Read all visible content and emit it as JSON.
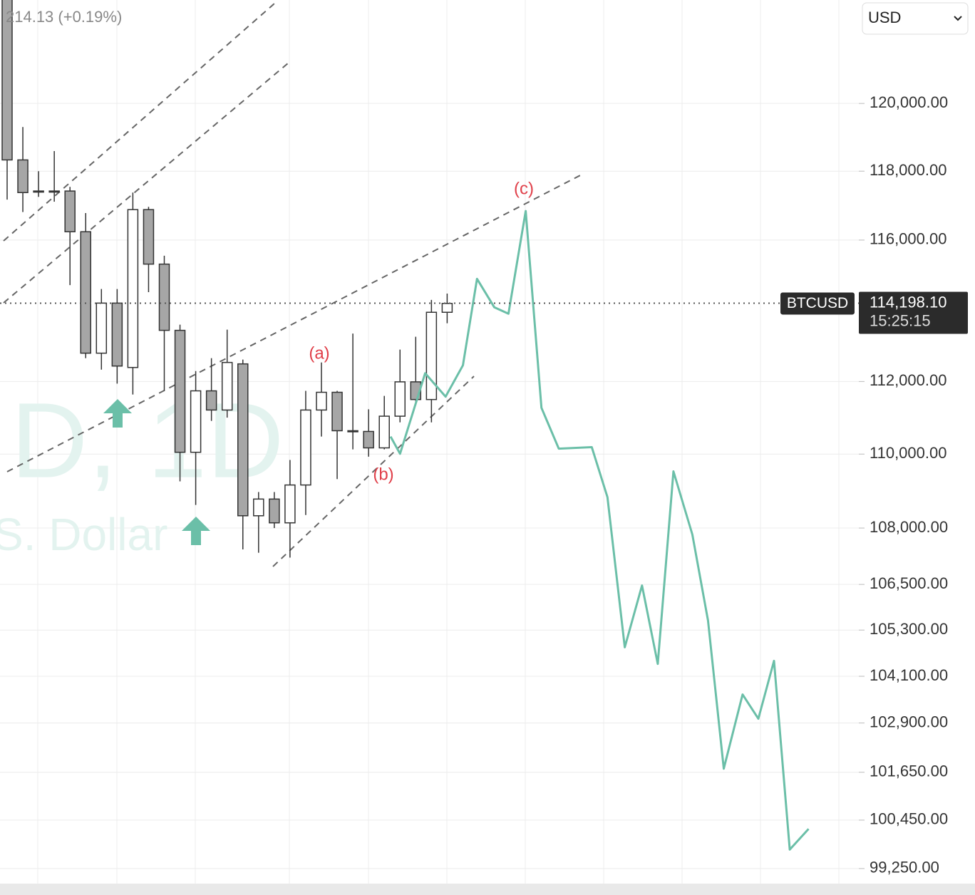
{
  "chart_data": {
    "type": "candlestick",
    "header_text": "214.13 (+0.19%)",
    "currency": "USD",
    "symbol": "BTCUSD",
    "countdown": "15:25:15",
    "watermark": [
      "D, 1D",
      "S. Dollar"
    ],
    "annotations": [
      "(a)",
      "(b)",
      "(c)"
    ],
    "log_scale": true,
    "grid": true,
    "ylim": [
      98880,
      123120
    ],
    "yticks": [
      {
        "value": 120000,
        "label": "120,000.00"
      },
      {
        "value": 118000,
        "label": "118,000.00"
      },
      {
        "value": 116000,
        "label": "116,000.00"
      },
      {
        "value": 112000,
        "label": "112,000.00"
      },
      {
        "value": 110000,
        "label": "110,000.00"
      },
      {
        "value": 108000,
        "label": "108,000.00"
      },
      {
        "value": 106500,
        "label": "106,500.00"
      },
      {
        "value": 105300,
        "label": "105,300.00"
      },
      {
        "value": 104100,
        "label": "104,100.00"
      },
      {
        "value": 102900,
        "label": "102,900.00"
      },
      {
        "value": 101650,
        "label": "101,650.00"
      },
      {
        "value": 100450,
        "label": "100,450.00"
      },
      {
        "value": 99250,
        "label": "99,250.00"
      }
    ],
    "last_price": {
      "value": 114198.1,
      "label": "114,198.10"
    },
    "up_color": "#ffffff",
    "down_color": "#a6a6a6",
    "open": [
      123200,
      118330,
      117420,
      117400,
      117420,
      116240,
      112790,
      114200,
      112390,
      116880,
      115310,
      113430,
      110050,
      111740,
      111210,
      112490,
      108330,
      108780,
      108140,
      109160,
      111210,
      111700,
      110640,
      110620,
      110170,
      111040,
      111990,
      111500,
      113940
    ],
    "high": [
      123300,
      119300,
      118000,
      118590,
      117540,
      116780,
      114600,
      114600,
      117375,
      116960,
      115550,
      113590,
      112290,
      112650,
      113450,
      112610,
      108970,
      108970,
      109840,
      111740,
      112530,
      111740,
      113340,
      111230,
      111600,
      112890,
      113250,
      114290,
      114470
    ],
    "low": [
      117170,
      116810,
      117250,
      117110,
      114710,
      112650,
      112330,
      111940,
      111640,
      114510,
      111740,
      109260,
      108620,
      110910,
      111000,
      107430,
      107340,
      108000,
      107210,
      108350,
      110480,
      109320,
      110130,
      109930,
      110130,
      110870,
      111340,
      110870,
      113630
    ],
    "close": [
      118330,
      117375,
      117400,
      117420,
      116240,
      112790,
      114200,
      112430,
      116880,
      115310,
      113430,
      110050,
      111740,
      111210,
      112530,
      108330,
      108780,
      108140,
      109160,
      111210,
      111700,
      110640,
      110620,
      110170,
      111040,
      111990,
      111500,
      113940,
      114190
    ],
    "projection": {
      "color": "#6bbfa8",
      "x": [
        24.4,
        25.0,
        26.6,
        27.9,
        29.0,
        29.9,
        31.0,
        31.9,
        33.0,
        34.0,
        35.1,
        37.2,
        38.2,
        39.3,
        40.4,
        41.4,
        42.4,
        43.6,
        44.6,
        45.6,
        46.8,
        47.8,
        48.8,
        49.8,
        51.0
      ],
      "values": [
        110480,
        110010,
        112230,
        111580,
        112450,
        114890,
        114080,
        113900,
        116840,
        111270,
        110150,
        110190,
        108830,
        104850,
        106470,
        104420,
        109530,
        107830,
        105550,
        101740,
        103630,
        103010,
        104500,
        99720,
        100230
      ]
    }
  }
}
